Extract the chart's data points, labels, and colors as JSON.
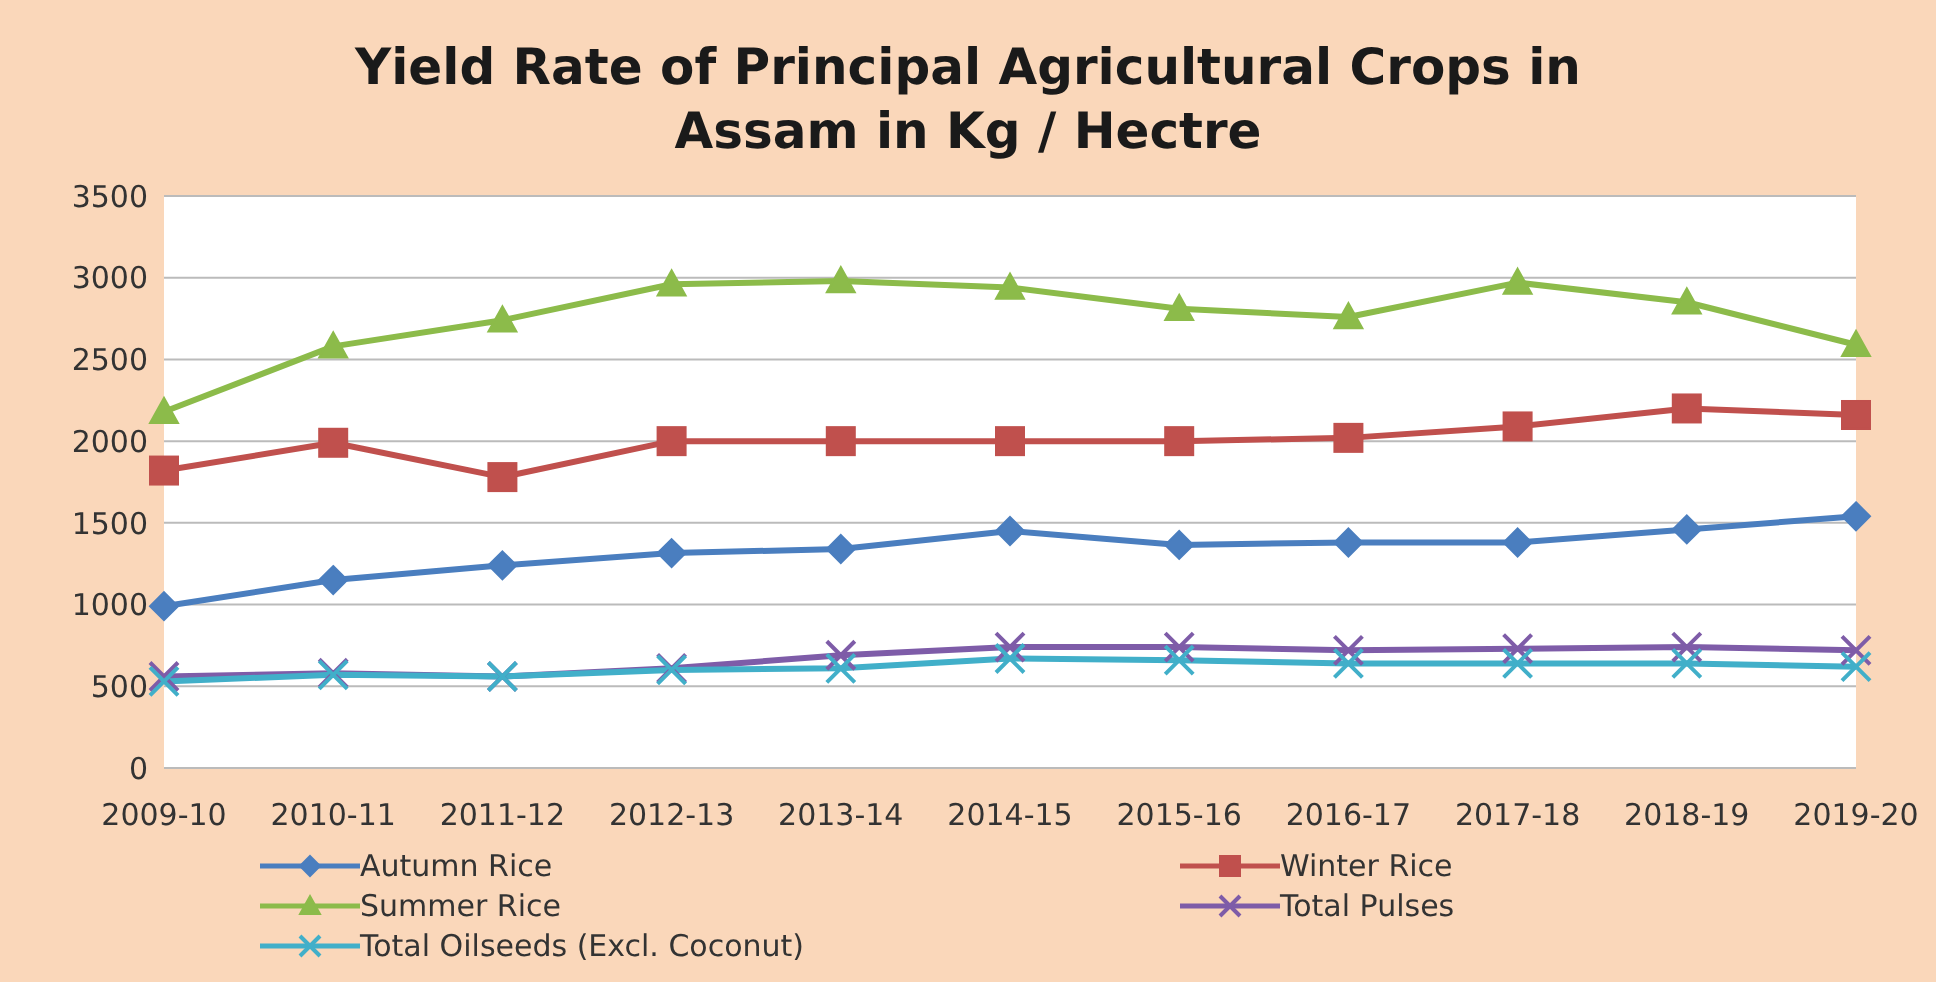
{
  "chart_data": {
    "type": "line",
    "title": "Yield Rate of Principal Agricultural Crops in Assam in Kg / Hectre",
    "categories": [
      "2009-10",
      "2010-11",
      "2011-12",
      "2012-13",
      "2013-14",
      "2014-15",
      "2015-16",
      "2016-17",
      "2017-18",
      "2018-19",
      "2019-20"
    ],
    "series": [
      {
        "name": "Autumn Rice",
        "color": "#4a7ebf",
        "marker": "diamond",
        "values": [
          990,
          1150,
          1240,
          1315,
          1340,
          1450,
          1365,
          1380,
          1380,
          1460,
          1540
        ]
      },
      {
        "name": "Winter Rice",
        "color": "#c0504d",
        "marker": "square",
        "values": [
          1820,
          1990,
          1780,
          2000,
          2000,
          2000,
          2000,
          2020,
          2090,
          2200,
          2160
        ]
      },
      {
        "name": "Summer Rice",
        "color": "#8cbb4a",
        "marker": "triangle",
        "values": [
          2180,
          2580,
          2740,
          2960,
          2980,
          2940,
          2810,
          2760,
          2970,
          2850,
          2590
        ]
      },
      {
        "name": "Total Pulses",
        "color": "#7e5ca8",
        "marker": "cross",
        "values": [
          560,
          580,
          560,
          610,
          690,
          740,
          740,
          720,
          730,
          740,
          720
        ]
      },
      {
        "name": "Total Oilseeds (Excl. Coconut)",
        "color": "#41afc9",
        "marker": "cross",
        "values": [
          530,
          570,
          560,
          600,
          610,
          670,
          660,
          640,
          640,
          640,
          620
        ]
      }
    ],
    "ylim": [
      0,
      3500
    ],
    "yticks": [
      0,
      500,
      1000,
      1500,
      2000,
      2500,
      3000,
      3500
    ],
    "grid": "y",
    "legend": "bottom",
    "line_style": "solid"
  }
}
